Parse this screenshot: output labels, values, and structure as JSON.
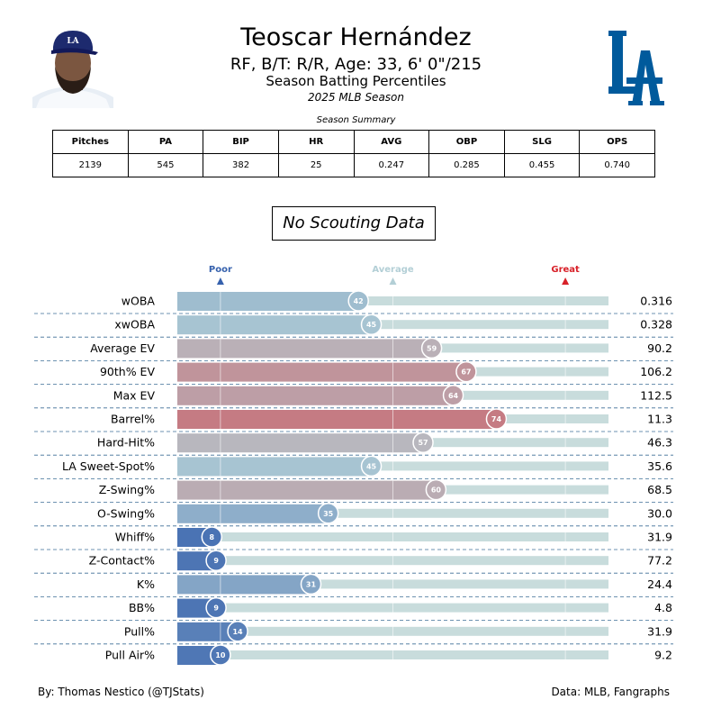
{
  "header": {
    "player_name": "Teoscar Hernández",
    "player_info": "RF, B/T: R/R, Age: 33, 6' 0\"/215",
    "report_title": "Season Batting Percentiles",
    "season_label": "2025 MLB Season",
    "headshot_icon": "player-headshot-icon",
    "logo_icon": "dodgers-la-logo-icon",
    "logo_text": "LA",
    "logo_color": "#005A9C"
  },
  "summary": {
    "caption": "Season Summary",
    "headers": [
      "Pitches",
      "PA",
      "BIP",
      "HR",
      "AVG",
      "OBP",
      "SLG",
      "OPS"
    ],
    "values": [
      "2139",
      "545",
      "382",
      "25",
      "0.247",
      "0.285",
      "0.455",
      "0.740"
    ]
  },
  "scouting": {
    "message": "No Scouting Data"
  },
  "chart_data": {
    "type": "bar",
    "orientation": "horizontal",
    "xlim": [
      0,
      100
    ],
    "markers": [
      {
        "label": "Poor",
        "value": 10,
        "color": "#3661ad"
      },
      {
        "label": "Average",
        "value": 50,
        "color": "#b3cfd6"
      },
      {
        "label": "Great",
        "value": 90,
        "color": "#d82129"
      }
    ],
    "categories": [
      "wOBA",
      "xwOBA",
      "Average EV",
      "90th% EV",
      "Max EV",
      "Barrel%",
      "Hard-Hit%",
      "LA Sweet-Spot%",
      "Z-Swing%",
      "O-Swing%",
      "Whiff%",
      "Z-Contact%",
      "K%",
      "BB%",
      "Pull%",
      "Pull Air%"
    ],
    "percentiles": [
      42,
      45,
      59,
      67,
      64,
      74,
      57,
      45,
      60,
      35,
      8,
      9,
      31,
      9,
      14,
      10
    ],
    "stat_values": [
      "0.316",
      "0.328",
      "90.2",
      "106.2",
      "112.5",
      "11.3",
      "46.3",
      "35.6",
      "68.5",
      "30.0",
      "31.9",
      "77.2",
      "24.4",
      "4.8",
      "31.9",
      "9.2"
    ],
    "colors": {
      "low": "#3661ad",
      "mid": "#b3cfd6",
      "high": "#d82129",
      "track": "#c8dcdc",
      "divider": "#3d6e96"
    },
    "grid": true
  },
  "footer": {
    "credit": "By: Thomas Nestico (@TJStats)",
    "source": "Data: MLB, Fangraphs"
  }
}
